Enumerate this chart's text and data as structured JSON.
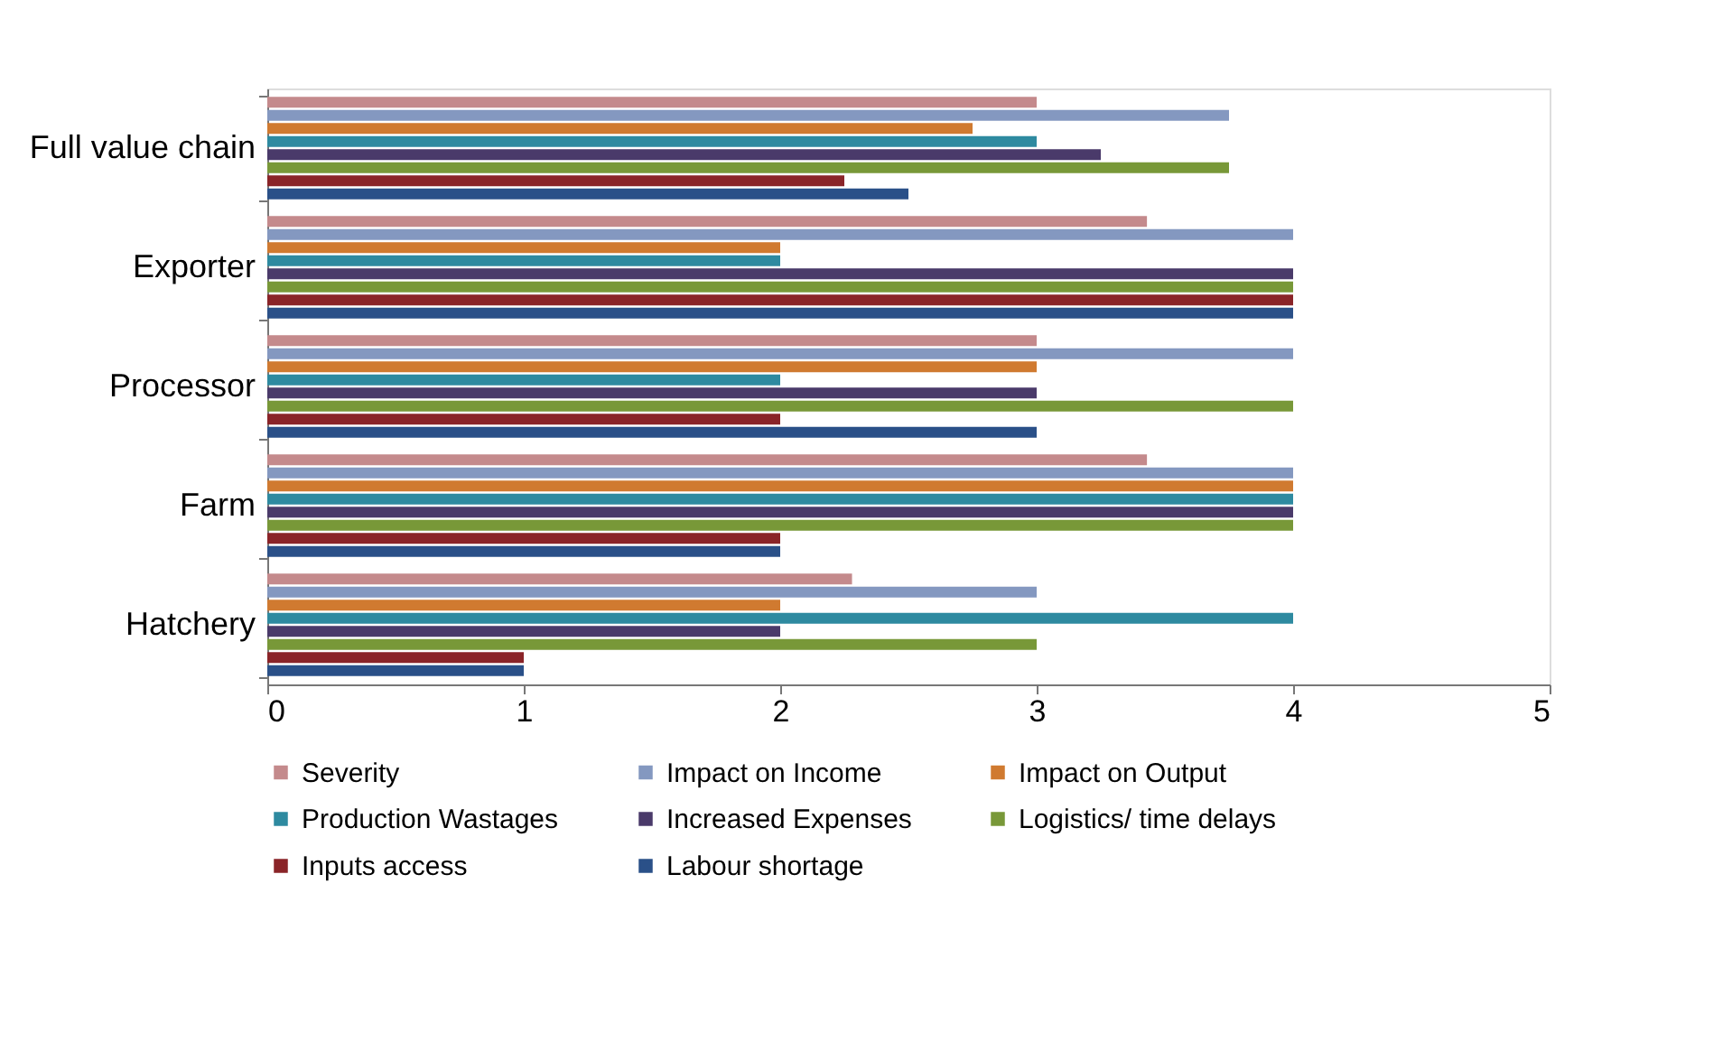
{
  "chart_data": {
    "type": "bar",
    "orientation": "horizontal",
    "categories": [
      "Full value chain",
      "Exporter",
      "Processor",
      "Farm",
      "Hatchery"
    ],
    "series": [
      {
        "name": "Severity",
        "color": "#c48a8c",
        "values": [
          3.0,
          3.43,
          3.0,
          3.43,
          2.28
        ]
      },
      {
        "name": "Impact on  Income",
        "color": "#8498c0",
        "values": [
          3.75,
          4,
          4,
          4,
          3
        ]
      },
      {
        "name": "Impact on Output",
        "color": "#d07a30",
        "values": [
          2.75,
          2,
          3,
          4,
          2
        ]
      },
      {
        "name": "Production Wastages",
        "color": "#2e8aa0",
        "values": [
          3,
          2,
          2,
          4,
          4
        ]
      },
      {
        "name": "Increased Expenses",
        "color": "#4a3a6a",
        "values": [
          3.25,
          4,
          3,
          4,
          2
        ]
      },
      {
        "name": "Logistics/ time delays",
        "color": "#789838",
        "values": [
          3.75,
          4,
          4,
          4,
          3
        ]
      },
      {
        "name": "Inputs access",
        "color": "#8a2428",
        "values": [
          2.25,
          4,
          2,
          2,
          1
        ]
      },
      {
        "name": "Labour shortage",
        "color": "#2a5088",
        "values": [
          2.5,
          4,
          3,
          2,
          1
        ]
      }
    ],
    "xlim": [
      0,
      5
    ],
    "xticks": [
      0,
      1,
      2,
      3,
      4,
      5
    ],
    "grid": false,
    "legend": "bottom"
  }
}
